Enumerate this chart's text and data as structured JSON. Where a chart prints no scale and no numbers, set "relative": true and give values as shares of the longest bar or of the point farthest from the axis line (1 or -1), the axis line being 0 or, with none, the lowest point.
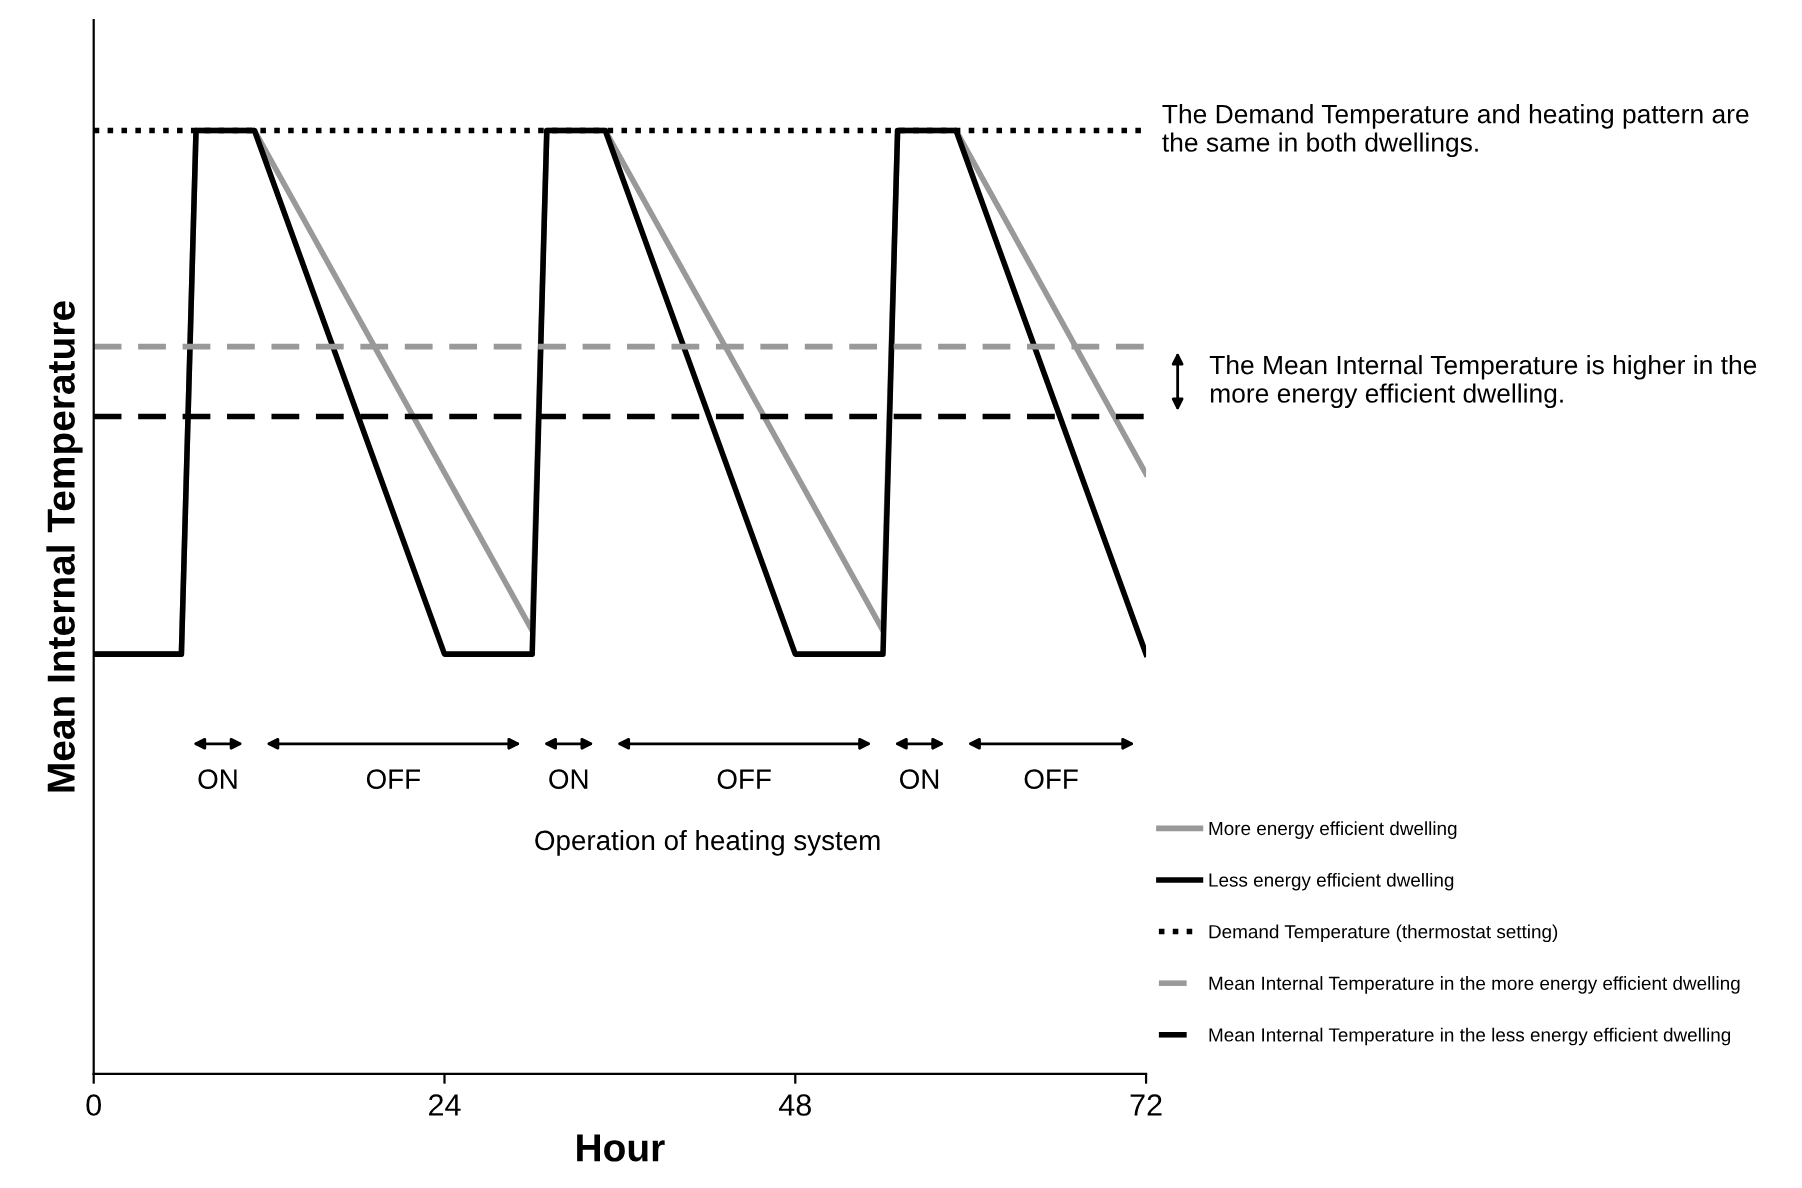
{
  "chart_data": {
    "type": "line",
    "relative": true,
    "xlabel": "Hour",
    "ylabel": "Mean Internal Temperature",
    "xlim": [
      0,
      72
    ],
    "xticks": [
      0,
      24,
      48,
      72
    ],
    "legend": "right",
    "grid": false,
    "line_style": "solid",
    "marker": "none",
    "series": [
      {
        "name": "More energy efficient dwelling",
        "color": "#999999",
        "x": [
          0,
          6,
          7,
          11,
          30,
          31,
          35,
          54,
          55,
          59,
          72
        ],
        "values": [
          0.445,
          0.445,
          1,
          1,
          0.47,
          1,
          1,
          0.47,
          1,
          1,
          0.636
        ]
      },
      {
        "name": "Less energy efficient dwelling",
        "color": "#000000",
        "x": [
          0,
          6,
          7,
          11,
          24,
          30,
          31,
          35,
          48,
          54,
          55,
          59,
          72
        ],
        "values": [
          0.445,
          0.445,
          1,
          1,
          0.445,
          0.445,
          1,
          1,
          0.445,
          0.445,
          1,
          1,
          0.445
        ]
      }
    ],
    "ref_lines": [
      {
        "axis": "y",
        "value": 1,
        "label": "Demand Temperature (thermostat setting)",
        "color": "#000000",
        "line_style": "dotted"
      },
      {
        "axis": "y",
        "value": 0.771,
        "label": "Mean Internal Temperature in the more energy efficient dwelling",
        "color": "#999999",
        "line_style": "dashed"
      },
      {
        "axis": "y",
        "value": 0.697,
        "label": "Mean Internal Temperature in the less energy efficient dwelling",
        "color": "#000000",
        "line_style": "dashed"
      }
    ],
    "annotations": [
      "The Demand Temperature and heating pattern are the same in both dwellings.",
      "The Mean Internal Temperature is higher in the more energy efficient dwelling.",
      "ON",
      "OFF",
      "ON",
      "OFF",
      "ON",
      "OFF",
      "Operation of heating system"
    ]
  }
}
